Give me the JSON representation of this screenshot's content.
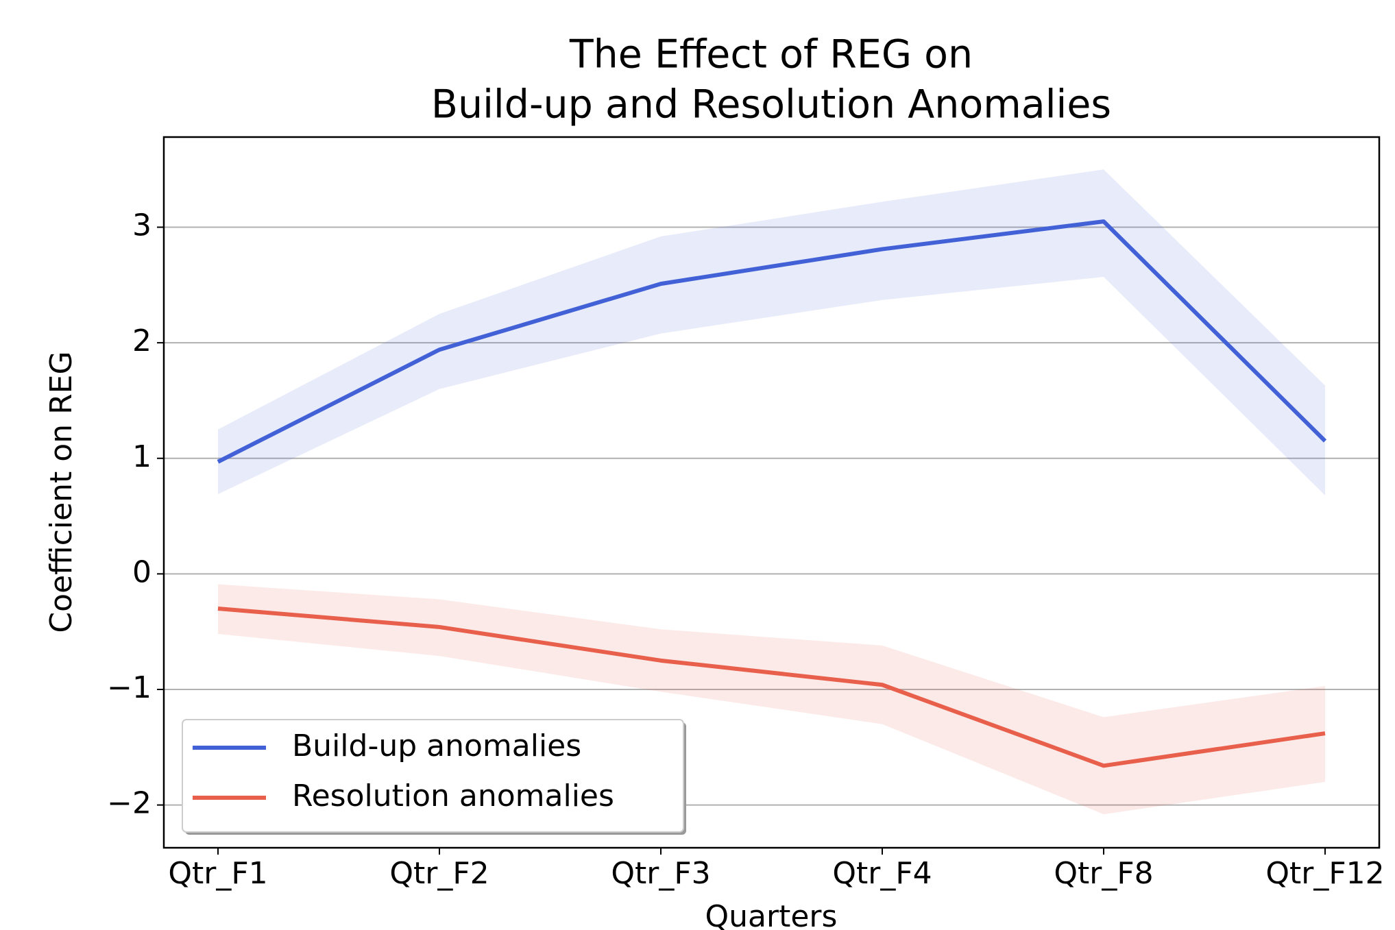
{
  "chart_data": {
    "type": "line",
    "title": "The Effect of REG on",
    "subtitle": "Build-up and Resolution Anomalies",
    "x_label": "Quarters",
    "y_label": "Coefficient on REG",
    "categories": [
      "Qtr_F1",
      "Qtr_F2",
      "Qtr_F3",
      "Qtr_F4",
      "Qtr_F8",
      "Qtr_F12"
    ],
    "series": [
      {
        "name": "Build-up anomalies",
        "color": "#4361d6",
        "values": [
          0.97,
          1.94,
          2.51,
          2.81,
          3.05,
          1.15
        ],
        "upper": [
          1.25,
          2.25,
          2.92,
          3.22,
          3.5,
          1.63
        ],
        "lower": [
          0.69,
          1.6,
          2.08,
          2.37,
          2.57,
          0.68
        ]
      },
      {
        "name": "Resolution anomalies",
        "color": "#e8604c",
        "values": [
          -0.3,
          -0.46,
          -0.75,
          -0.96,
          -1.66,
          -1.38
        ],
        "upper": [
          -0.09,
          -0.22,
          -0.48,
          -0.62,
          -1.24,
          -0.97
        ],
        "lower": [
          -0.52,
          -0.71,
          -1.02,
          -1.3,
          -2.08,
          -1.8
        ]
      }
    ],
    "ylim": [
      -2.37,
      3.78
    ],
    "yticks": [
      {
        "value": -2,
        "label": "−2"
      },
      {
        "value": -1,
        "label": "−1"
      },
      0,
      1,
      2,
      3
    ],
    "grid": true,
    "legend": "lower left"
  }
}
